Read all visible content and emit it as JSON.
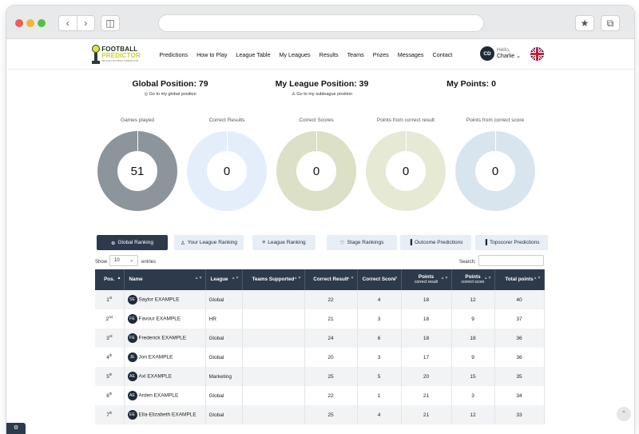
{
  "browser": {
    "back_icon": "chevron-left-icon",
    "forward_icon": "chevron-right-icon",
    "sidebar_icon": "sidebar-icon",
    "bookmark_icon": "star-icon",
    "tabs_icon": "tabs-icon"
  },
  "brand": {
    "line1": "FOOTBALL",
    "line2": "PREDICTOR",
    "tagline": "OFFICE FOOTBALL PREDICTOR",
    "colors": {
      "dark": "#2d3a4b",
      "accent": "#c8d226"
    }
  },
  "nav": {
    "items": [
      "Predictions",
      "How to Play",
      "League Table",
      "My Leagues",
      "Results",
      "Teams",
      "Prizes",
      "Messages",
      "Contact"
    ]
  },
  "user": {
    "initials": "CD",
    "greeting": "Hello,",
    "name": "Charlie ⌄",
    "flag_icon": "uk-flag-icon"
  },
  "positions": {
    "global": {
      "title": "Global Position: 79",
      "link": "Go to my global position"
    },
    "league": {
      "title": "My League Position: 39",
      "link": "Go to my subleague position"
    },
    "points": {
      "title": "My Points: 0"
    }
  },
  "stats": [
    {
      "label": "Games played",
      "value": "51",
      "color": "#8c949c"
    },
    {
      "label": "Correct Results",
      "value": "0",
      "color": "#e4eefb"
    },
    {
      "label": "Correct Scores",
      "value": "0",
      "color": "#dbe0c6"
    },
    {
      "label": "Points from correct result",
      "value": "0",
      "color": "#e6e9d4"
    },
    {
      "label": "Points from correct score",
      "value": "0",
      "color": "#d9e5ee"
    }
  ],
  "tabs": [
    {
      "label": "Global Ranking",
      "icon": "globe-icon",
      "glyph": "⊕"
    },
    {
      "label": "Your League Ranking",
      "icon": "user-icon",
      "glyph": "♙"
    },
    {
      "label": "League Ranking",
      "icon": "list-icon",
      "glyph": "≡"
    },
    {
      "label": "Stage Rankings",
      "icon": "trophy-icon",
      "glyph": "♡"
    },
    {
      "label": "Outcome Predictions",
      "icon": "bar-chart-icon",
      "glyph": "▐"
    },
    {
      "label": "Topscorer Predictions",
      "icon": "bar-chart-icon",
      "glyph": "▐"
    }
  ],
  "table_controls": {
    "show_label": "Show",
    "entries_value": "10",
    "entries_label": "entries",
    "search_label": "Search:",
    "search_value": ""
  },
  "table": {
    "headers": [
      {
        "label": "Pos.",
        "sub": ""
      },
      {
        "label": "Name",
        "sub": ""
      },
      {
        "label": "League",
        "sub": ""
      },
      {
        "label": "Teams Supported",
        "sub": ""
      },
      {
        "label": "Correct Result",
        "sub": ""
      },
      {
        "label": "Correct Score",
        "sub": ""
      },
      {
        "label": "Points",
        "sub": "correct result"
      },
      {
        "label": "Points",
        "sub": "correct score"
      },
      {
        "label": "Total points",
        "sub": ""
      }
    ],
    "rows": [
      {
        "pos": "1",
        "suffix": "st",
        "initials": "SE",
        "name": "Saylor EXAMPLE",
        "league": "Global",
        "teams": "",
        "correct_result": "22",
        "correct_score": "4",
        "pts_result": "18",
        "pts_score": "12",
        "total": "40"
      },
      {
        "pos": "2",
        "suffix": "nd",
        "initials": "FE",
        "name": "Favour EXAMPLE",
        "league": "HR",
        "teams": "",
        "correct_result": "21",
        "correct_score": "3",
        "pts_result": "18",
        "pts_score": "9",
        "total": "37"
      },
      {
        "pos": "3",
        "suffix": "rd",
        "initials": "FE",
        "name": "Frederick EXAMPLE",
        "league": "Global",
        "teams": "",
        "correct_result": "24",
        "correct_score": "6",
        "pts_result": "18",
        "pts_score": "18",
        "total": "36"
      },
      {
        "pos": "4",
        "suffix": "th",
        "initials": "JE",
        "name": "Jon EXAMPLE",
        "league": "Global",
        "teams": "",
        "correct_result": "20",
        "correct_score": "3",
        "pts_result": "17",
        "pts_score": "9",
        "total": "36"
      },
      {
        "pos": "5",
        "suffix": "th",
        "initials": "AE",
        "name": "Axl EXAMPLE",
        "league": "Marketing",
        "teams": "",
        "correct_result": "25",
        "correct_score": "5",
        "pts_result": "20",
        "pts_score": "15",
        "total": "35"
      },
      {
        "pos": "6",
        "suffix": "th",
        "initials": "AE",
        "name": "Arden EXAMPLE",
        "league": "Global",
        "teams": "",
        "correct_result": "22",
        "correct_score": "1",
        "pts_result": "21",
        "pts_score": "3",
        "total": "34"
      },
      {
        "pos": "7",
        "suffix": "th",
        "initials": "EE",
        "name": "Ella-Elizabeth EXAMPLE",
        "league": "Global",
        "teams": "",
        "correct_result": "25",
        "correct_score": "4",
        "pts_result": "21",
        "pts_score": "12",
        "total": "33"
      }
    ]
  },
  "footer": {
    "cookie_icon": "cookie-settings-icon",
    "to_top_icon": "arrow-up-icon"
  }
}
